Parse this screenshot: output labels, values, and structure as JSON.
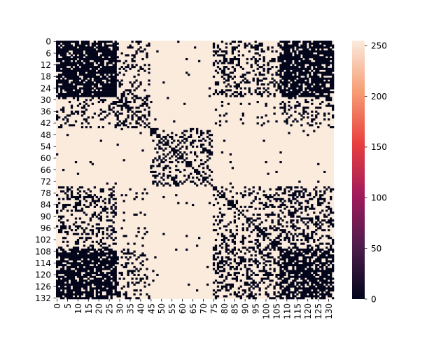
{
  "chart_data": {
    "type": "heatmap",
    "title": "",
    "xlabel": "",
    "ylabel": "",
    "n_rows": 133,
    "n_cols": 133,
    "value_range": [
      0,
      255
    ],
    "binary_values": [
      0,
      255
    ],
    "x_tick_labels": [
      "0",
      "5",
      "10",
      "15",
      "20",
      "25",
      "30",
      "35",
      "40",
      "45",
      "50",
      "55",
      "60",
      "65",
      "70",
      "75",
      "80",
      "85",
      "90",
      "95",
      "100",
      "105",
      "110",
      "115",
      "120",
      "125",
      "130"
    ],
    "y_tick_labels": [
      "0",
      "6",
      "12",
      "18",
      "24",
      "30",
      "36",
      "42",
      "48",
      "54",
      "60",
      "66",
      "72",
      "78",
      "84",
      "90",
      "96",
      "102",
      "108",
      "114",
      "120",
      "126",
      "132"
    ],
    "colorbar_ticks": [
      "0",
      "50",
      "100",
      "150",
      "200",
      "250"
    ],
    "colormap": "rocket",
    "colormap_stops": [
      "#03051a",
      "#4c1d4b",
      "#a11a5b",
      "#e83f3f",
      "#f69c73",
      "#faebdd"
    ],
    "grid": false,
    "structure": {
      "description_blocks": [
        {
          "rows": [
            0,
            28
          ],
          "cols": [
            0,
            28
          ],
          "value": 0,
          "pattern": "dense-with-diagonal"
        },
        {
          "rows": [
            29,
            44
          ],
          "cols": [
            29,
            44
          ],
          "value": 0,
          "pattern": "sparse"
        },
        {
          "rows": [
            45,
            74
          ],
          "cols": [
            45,
            74
          ],
          "value": 0,
          "pattern": "sparse"
        },
        {
          "rows": [
            75,
            106
          ],
          "cols": [
            75,
            106
          ],
          "value": 0,
          "pattern": "sparse-grid"
        },
        {
          "rows": [
            107,
            132
          ],
          "cols": [
            107,
            132
          ],
          "value": 0,
          "pattern": "dense-with-diagonal"
        },
        {
          "rows": [
            0,
            28
          ],
          "cols": [
            107,
            132
          ],
          "value": 0,
          "pattern": "dense"
        },
        {
          "rows": [
            107,
            132
          ],
          "cols": [
            0,
            28
          ],
          "value": 0,
          "pattern": "dense"
        }
      ],
      "default_value": 255,
      "diagonal_value": 0
    }
  }
}
